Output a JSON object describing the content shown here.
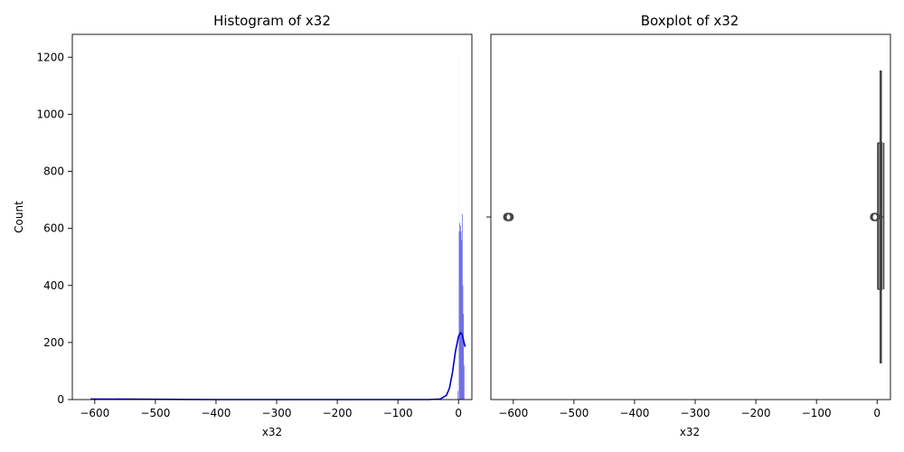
{
  "chart_data": [
    {
      "type": "histogram",
      "title": "Histogram of x32",
      "xlabel": "x32",
      "ylabel": "Count",
      "xlim": [
        -637,
        22
      ],
      "ylim": [
        0,
        1280
      ],
      "xticks": [
        -600,
        -500,
        -400,
        -300,
        -200,
        -100,
        0
      ],
      "xtick_labels": [
        "−600",
        "−500",
        "−400",
        "−300",
        "−200",
        "−100",
        "0"
      ],
      "yticks": [
        0,
        200,
        400,
        600,
        800,
        1000,
        1200
      ],
      "ytick_labels": [
        "0",
        "200",
        "400",
        "600",
        "800",
        "1000",
        "1200"
      ],
      "bar_color": "#4c4cdf",
      "kde_color": "#0000cc",
      "bins": [
        {
          "x0": -0.5,
          "x1": 0.5,
          "count": 1200
        },
        {
          "x0": 0.5,
          "x1": 1.5,
          "count": 590
        },
        {
          "x0": 1.5,
          "x1": 2.5,
          "count": 620
        },
        {
          "x0": 2.5,
          "x1": 3.5,
          "count": 610
        },
        {
          "x0": 3.5,
          "x1": 4.5,
          "count": 590
        },
        {
          "x0": 4.5,
          "x1": 5.5,
          "count": 560
        },
        {
          "x0": 5.5,
          "x1": 6.5,
          "count": 650
        },
        {
          "x0": 6.5,
          "x1": 7.5,
          "count": 400
        },
        {
          "x0": 7.5,
          "x1": 8.5,
          "count": 300
        },
        {
          "x0": 8.5,
          "x1": 9.5,
          "count": 120
        },
        {
          "x0": -1.5,
          "x1": -0.5,
          "count": 30
        },
        {
          "x0": -606,
          "x1": -604,
          "count": 3
        }
      ],
      "kde": {
        "x": [
          -607,
          -500,
          -400,
          -300,
          -200,
          -100,
          -50,
          -30,
          -20,
          -15,
          -10,
          -5,
          0,
          3,
          5,
          7,
          9,
          11
        ],
        "y": [
          2,
          1,
          0,
          0,
          0,
          0,
          0,
          2,
          15,
          40,
          95,
          170,
          222,
          234,
          232,
          220,
          200,
          185
        ]
      }
    },
    {
      "type": "box",
      "title": "Boxplot of x32",
      "xlabel": "x32",
      "xlim": [
        -637,
        22
      ],
      "xticks": [
        -600,
        -500,
        -400,
        -300,
        -200,
        -100,
        0
      ],
      "xtick_labels": [
        "−600",
        "−500",
        "−400",
        "−300",
        "−200",
        "−100",
        "0"
      ],
      "box_color": "#444444",
      "q1": 2,
      "median": 6,
      "q3": 8,
      "whisker_low": 1,
      "whisker_high": 11,
      "outliers": [
        -610,
        -609,
        -608,
        -607,
        -606,
        -5,
        -4,
        -3,
        -2
      ]
    }
  ]
}
